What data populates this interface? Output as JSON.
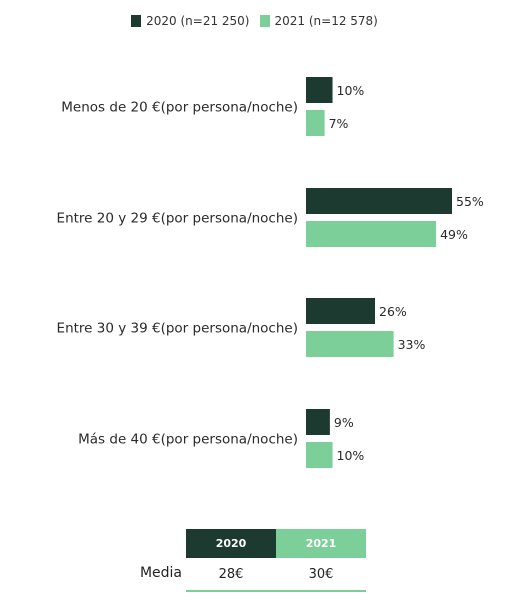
{
  "colors": {
    "2020": "#1d3a31",
    "2021": "#7dcf99"
  },
  "legend": [
    {
      "label": "2020 (n=21 250)",
      "color": "#1d3a31"
    },
    {
      "label": "2021 (n=12 578)",
      "color": "#7dcf99"
    }
  ],
  "chart_data": {
    "type": "bar",
    "orientation": "horizontal",
    "categories": [
      "Menos de 20 €(por persona/noche)",
      "Entre 20 y 29 €(por persona/noche)",
      "Entre 30 y 39 €(por persona/noche)",
      "Más de 40 €(por persona/noche)"
    ],
    "series": [
      {
        "name": "2020 (n=21 250)",
        "values": [
          10,
          55,
          26,
          9
        ],
        "labels": [
          "10%",
          "55%",
          "26%",
          "9%"
        ],
        "color": "#1d3a31"
      },
      {
        "name": "2021 (n=12 578)",
        "values": [
          7,
          49,
          33,
          10
        ],
        "labels": [
          "7%",
          "49%",
          "33%",
          "10%"
        ],
        "color": "#7dcf99"
      }
    ],
    "unit": "%",
    "xlim": [
      0,
      55
    ],
    "grid": false,
    "legend_position": "top-center"
  },
  "media_table": {
    "label": "Media",
    "headers": [
      "2020",
      "2021"
    ],
    "values": [
      "28€",
      "30€"
    ]
  }
}
